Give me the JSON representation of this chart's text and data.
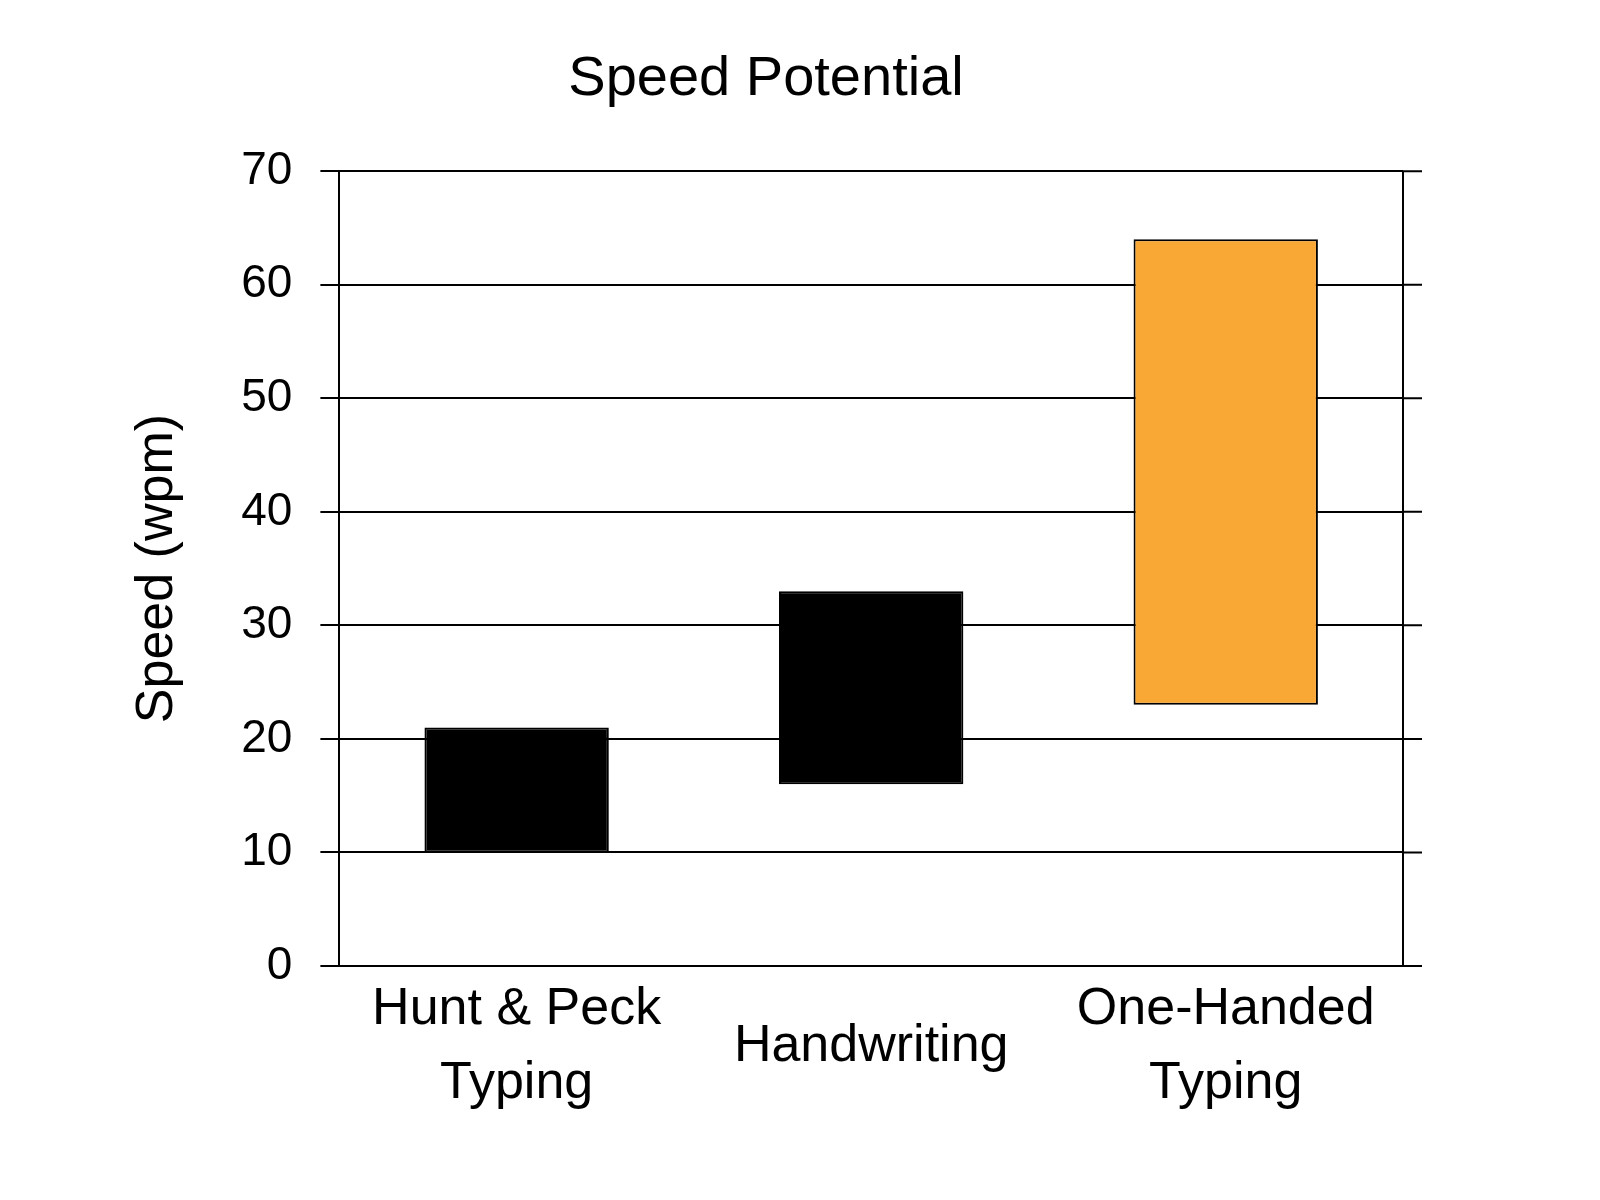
{
  "chart_data": {
    "type": "bar",
    "title": "Speed Potential",
    "ylabel": "Speed (wpm)",
    "categories": [
      "Hunt & Peck\nTyping",
      "Handwriting",
      "One-Handed\nTyping"
    ],
    "base": [
      10,
      16,
      23
    ],
    "values": [
      11,
      17,
      41
    ],
    "colors": [
      "#000000",
      "#000000",
      "#f9a836"
    ],
    "ylim": [
      0,
      70
    ],
    "yticks": [
      0,
      10,
      20,
      30,
      40,
      50,
      60,
      70
    ],
    "grid": "y"
  }
}
